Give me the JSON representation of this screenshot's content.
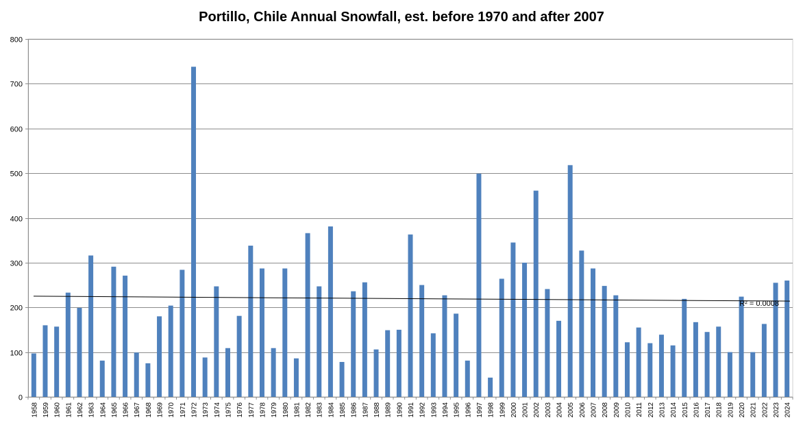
{
  "chart_data": {
    "type": "bar",
    "title": "Portillo, Chile Annual Snowfall, est. before 1970 and after 2007",
    "xlabel": "",
    "ylabel": "",
    "ylim": [
      0,
      800
    ],
    "y_ticks": [
      0,
      100,
      200,
      300,
      400,
      500,
      600,
      700,
      800
    ],
    "grid": true,
    "bar_color": "#4f81bd",
    "categories": [
      "1958",
      "1959",
      "1960",
      "1961",
      "1962",
      "1963",
      "1964",
      "1965",
      "1966",
      "1967",
      "1968",
      "1969",
      "1970",
      "1971",
      "1972",
      "1973",
      "1974",
      "1975",
      "1976",
      "1977",
      "1978",
      "1979",
      "1980",
      "1981",
      "1982",
      "1983",
      "1984",
      "1985",
      "1986",
      "1987",
      "1988",
      "1989",
      "1990",
      "1991",
      "1992",
      "1993",
      "1994",
      "1995",
      "1996",
      "1997",
      "1998",
      "1999",
      "2000",
      "2001",
      "2002",
      "2003",
      "2004",
      "2005",
      "2006",
      "2007",
      "2008",
      "2009",
      "2010",
      "2011",
      "2012",
      "2013",
      "2014",
      "2015",
      "2016",
      "2017",
      "2018",
      "2019",
      "2020",
      "2021",
      "2022",
      "2023",
      "2024"
    ],
    "values": [
      97,
      160,
      157,
      233,
      199,
      316,
      81,
      291,
      271,
      99,
      75,
      180,
      204,
      284,
      738,
      88,
      247,
      109,
      181,
      338,
      287,
      109,
      287,
      86,
      366,
      247,
      381,
      78,
      236,
      256,
      106,
      149,
      150,
      363,
      250,
      142,
      227,
      186,
      81,
      499,
      43,
      264,
      345,
      300,
      461,
      241,
      170,
      518,
      327,
      287,
      248,
      227,
      122,
      155,
      120,
      139,
      115,
      219,
      167,
      145,
      157,
      100,
      224,
      100,
      163,
      255,
      260
    ],
    "trendline": {
      "type": "linear",
      "start_value": 225,
      "end_value": 214,
      "label": "R² = 0.0008",
      "color": "#000000"
    }
  }
}
